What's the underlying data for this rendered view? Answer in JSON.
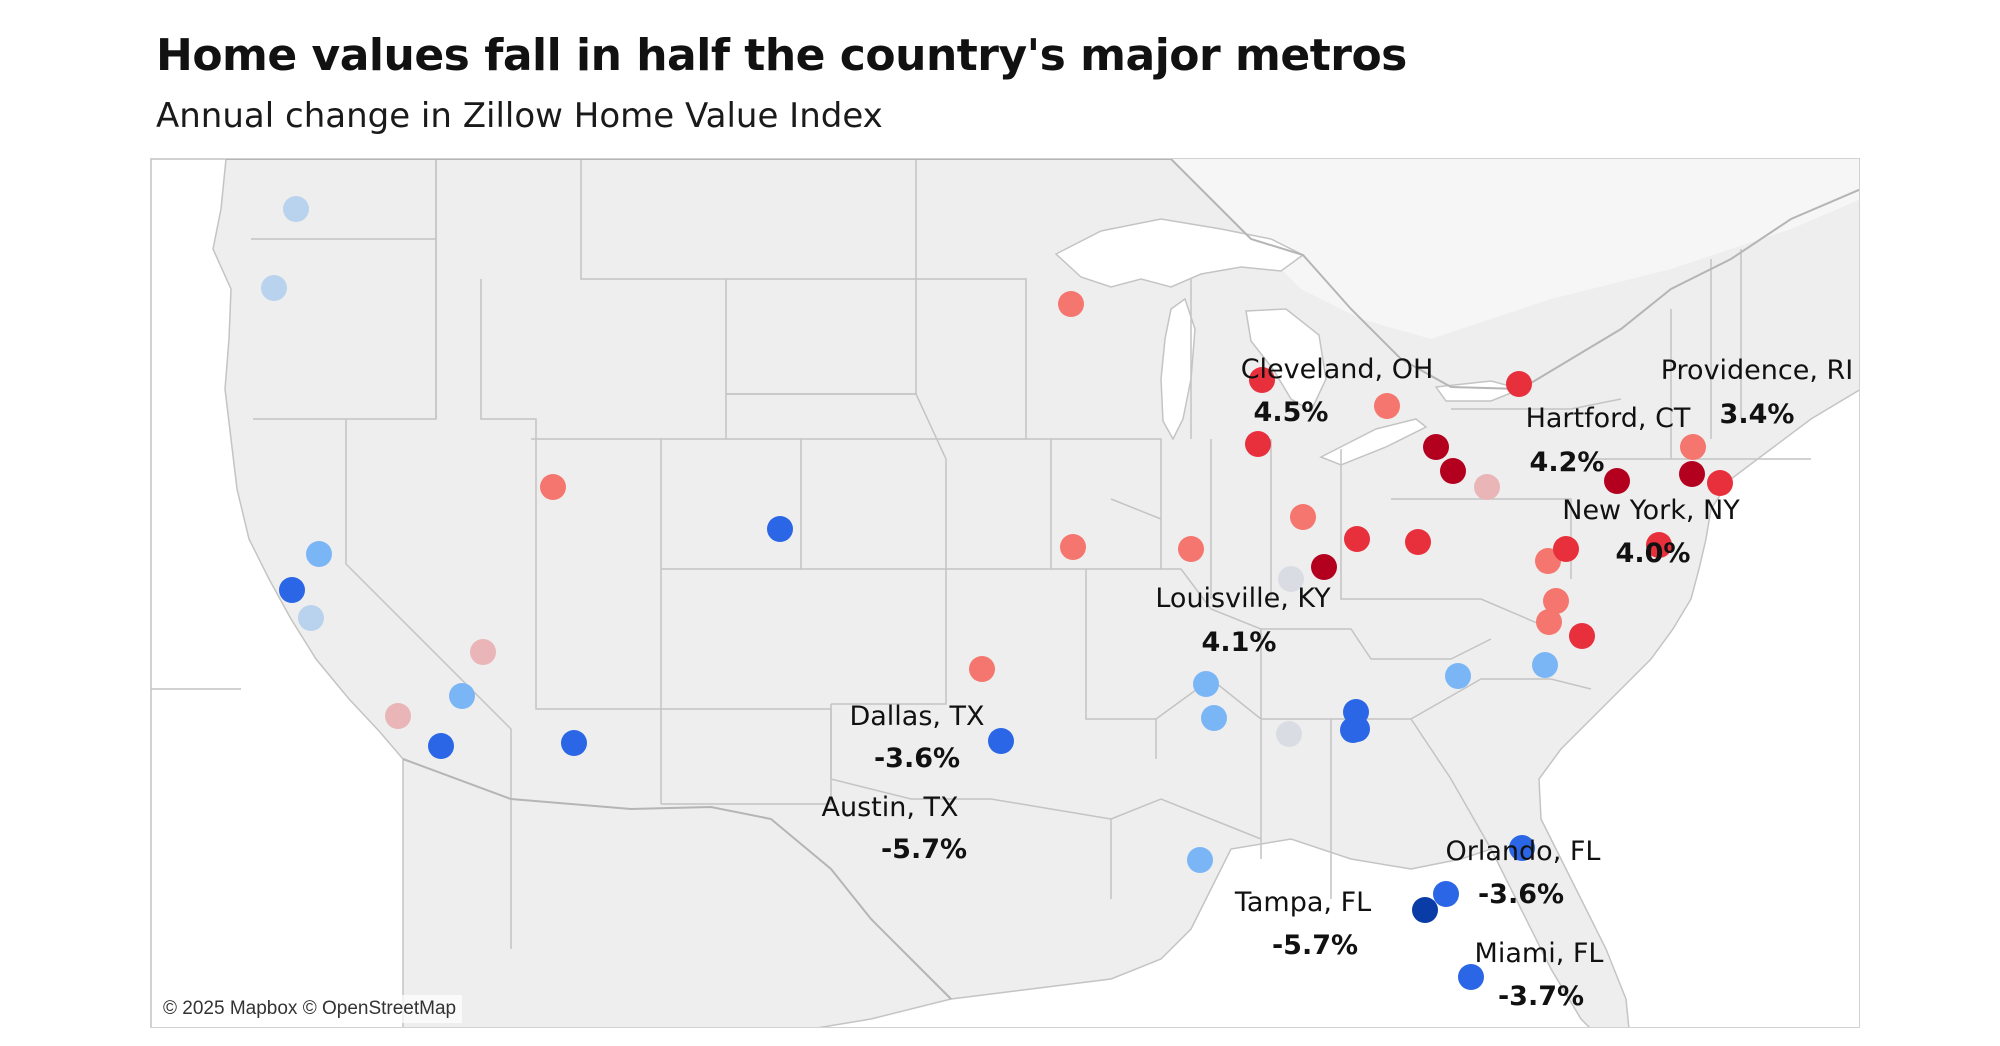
{
  "title": "Home values fall in half the country's major metros",
  "subtitle": "Annual change in Zillow Home Value Index",
  "attribution": "© 2025 Mapbox © OpenStreetMap",
  "colors": {
    "background": "#ffffff",
    "land": "#eeeeee",
    "water": "#ffffff",
    "border": "#c4c4c4",
    "strong_decline": "#0a3ca8",
    "decline": "#2a66e6",
    "mild_decline": "#7ab6f5",
    "slight_decline": "#b9d3ef",
    "flat": "#d9dde3",
    "slight_gain": "#e9b5b7",
    "gain": "#f4766e",
    "strong_gain": "#e8303d",
    "strongest_gain": "#b4001f"
  },
  "labeled_metros": [
    {
      "name": "Cleveland, OH",
      "value": "4.5%"
    },
    {
      "name": "Providence, RI",
      "value": "3.4%"
    },
    {
      "name": "Hartford, CT",
      "value": "4.2%"
    },
    {
      "name": "New York, NY",
      "value": "4.0%"
    },
    {
      "name": "Louisville, KY",
      "value": "4.1%"
    },
    {
      "name": "Dallas, TX",
      "value": "-3.6%"
    },
    {
      "name": "Austin, TX",
      "value": "-5.7%"
    },
    {
      "name": "Orlando, FL",
      "value": "-3.6%"
    },
    {
      "name": "Tampa, FL",
      "value": "-5.7%"
    },
    {
      "name": "Miami, FL",
      "value": "-3.7%"
    }
  ],
  "metro_dots": [
    {
      "color_class": "slight_decline"
    },
    {
      "color_class": "slight_decline"
    },
    {
      "color_class": "mild_decline"
    },
    {
      "color_class": "decline"
    },
    {
      "color_class": "slight_decline"
    },
    {
      "color_class": "slight_gain"
    },
    {
      "color_class": "mild_decline"
    },
    {
      "color_class": "slight_gain"
    },
    {
      "color_class": "decline"
    },
    {
      "color_class": "decline"
    },
    {
      "color_class": "gain"
    },
    {
      "color_class": "decline"
    },
    {
      "color_class": "gain"
    },
    {
      "color_class": "gain"
    },
    {
      "color_class": "gain"
    },
    {
      "color_class": "gain"
    },
    {
      "color_class": "decline"
    },
    {
      "color_class": "strongest_gain"
    },
    {
      "color_class": "decline"
    },
    {
      "color_class": "mild_decline"
    },
    {
      "color_class": "mild_decline"
    },
    {
      "color_class": "mild_decline"
    },
    {
      "color_class": "strong_gain"
    },
    {
      "color_class": "strong_gain"
    },
    {
      "color_class": "gain"
    },
    {
      "color_class": "strong_gain"
    },
    {
      "color_class": "gain"
    },
    {
      "color_class": "strong_gain"
    },
    {
      "color_class": "strongest_gain"
    },
    {
      "color_class": "flat"
    },
    {
      "color_class": "mild_decline"
    },
    {
      "color_class": "flat"
    },
    {
      "color_class": "decline"
    },
    {
      "color_class": "strong_gain"
    },
    {
      "color_class": "strongest_gain"
    },
    {
      "color_class": "slight_gain"
    },
    {
      "color_class": "gain"
    },
    {
      "color_class": "strong_gain"
    },
    {
      "color_class": "strongest_gain"
    },
    {
      "color_class": "strong_gain"
    },
    {
      "color_class": "strongest_gain"
    },
    {
      "color_class": "strong_gain"
    },
    {
      "color_class": "gain"
    },
    {
      "color_class": "gain"
    },
    {
      "color_class": "gain"
    },
    {
      "color_class": "strong_gain"
    },
    {
      "color_class": "mild_decline"
    },
    {
      "color_class": "decline"
    },
    {
      "color_class": "decline"
    },
    {
      "color_class": "decline"
    },
    {
      "color_class": "strong_decline"
    },
    {
      "color_class": "decline"
    }
  ]
}
